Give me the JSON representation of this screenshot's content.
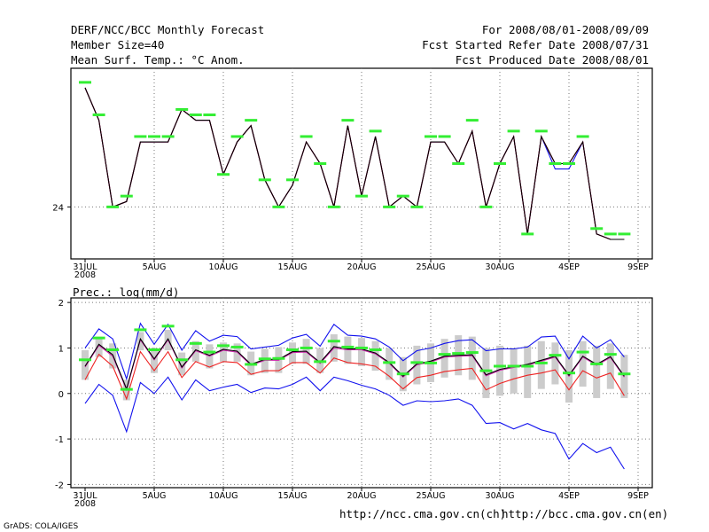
{
  "header": {
    "title": "DERF/NCC/BCC Monthly Forecast",
    "member_size": "Member Size=40",
    "variable": "Mean Surf. Temp.: °C Anom.",
    "period": "For 2008/08/01-2008/09/09",
    "start_date": "Fcst Started Refer Date 2008/07/31",
    "produced_date": "Fcst Produced Date 2008/08/01"
  },
  "footer": {
    "url_ch": "http://ncc.cma.gov.cn(ch)",
    "url_en": "http://bcc.cma.gov.cn(en)",
    "grads": "GrADS: COLA/IGES"
  },
  "colors": {
    "green": "#33ee33",
    "red": "#ee2222",
    "blue": "#1111ee",
    "magenta": "#cc22aa",
    "spread": "#cccccc",
    "black": "#000000"
  },
  "chart_data": [
    {
      "type": "line",
      "title": "Mean Surf. Temp.: °C Anom.",
      "x_ticks": [
        "31JUL",
        "5AUG",
        "10AUG",
        "15AUG",
        "20AUG",
        "25AUG",
        "30AUG",
        "4SEP",
        "9SEP"
      ],
      "x_year": "2008",
      "y_tick_labels": [
        "24"
      ],
      "y_tick_values": [
        24
      ],
      "ylim": [
        23.04,
        26.56
      ],
      "x": [
        1,
        2,
        3,
        4,
        5,
        6,
        7,
        8,
        9,
        10,
        11,
        12,
        13,
        14,
        15,
        16,
        17,
        18,
        19,
        20,
        21,
        22,
        23,
        24,
        25,
        26,
        27,
        28,
        29,
        30,
        31,
        32,
        33,
        34,
        35,
        36,
        37,
        38,
        39,
        40
      ],
      "series": [
        {
          "name": "green",
          "values": [
            26.3,
            25.7,
            24.0,
            24.2,
            25.3,
            25.3,
            25.3,
            25.8,
            25.7,
            25.7,
            24.6,
            25.3,
            25.6,
            24.5,
            24.0,
            24.5,
            25.3,
            24.8,
            24.0,
            25.6,
            24.2,
            25.4,
            24.0,
            24.2,
            24.0,
            25.3,
            25.3,
            24.8,
            25.6,
            24.0,
            24.8,
            25.4,
            23.5,
            25.4,
            24.8,
            24.8,
            25.3,
            23.6,
            23.5,
            23.5
          ]
        },
        {
          "name": "red",
          "values": [
            26.2,
            25.6,
            24.0,
            24.1,
            25.2,
            25.2,
            25.2,
            25.8,
            25.6,
            25.6,
            24.6,
            25.2,
            25.5,
            24.5,
            24.0,
            24.4,
            25.2,
            24.8,
            24.0,
            25.5,
            24.2,
            25.3,
            24.0,
            24.2,
            24.0,
            25.2,
            25.2,
            24.8,
            25.4,
            24.0,
            24.8,
            25.3,
            23.5,
            25.3,
            24.8,
            24.8,
            25.2,
            23.5,
            23.4,
            23.4
          ]
        },
        {
          "name": "magenta",
          "values": [
            26.2,
            25.6,
            24.0,
            24.1,
            25.2,
            25.2,
            25.2,
            25.8,
            25.6,
            25.6,
            24.6,
            25.2,
            25.5,
            24.5,
            24.0,
            24.4,
            25.2,
            24.8,
            24.0,
            25.5,
            24.2,
            25.3,
            24.0,
            24.2,
            24.0,
            25.2,
            25.2,
            24.8,
            25.4,
            24.0,
            24.8,
            25.3,
            23.5,
            25.3,
            24.8,
            24.8,
            25.2,
            23.5,
            23.4,
            23.4
          ]
        },
        {
          "name": "blue",
          "values": [
            26.2,
            25.6,
            24.0,
            24.1,
            25.2,
            25.2,
            25.2,
            25.8,
            25.6,
            25.6,
            24.6,
            25.2,
            25.5,
            24.5,
            24.0,
            24.4,
            25.2,
            24.8,
            24.0,
            25.5,
            24.2,
            25.3,
            24.0,
            24.2,
            24.0,
            25.2,
            25.2,
            24.8,
            25.4,
            24.0,
            24.8,
            25.3,
            23.5,
            25.3,
            24.7,
            24.7,
            25.2,
            23.5,
            23.4,
            23.4
          ]
        },
        {
          "name": "black",
          "values": [
            26.2,
            25.6,
            24.0,
            24.1,
            25.2,
            25.2,
            25.2,
            25.8,
            25.6,
            25.6,
            24.6,
            25.2,
            25.5,
            24.5,
            24.0,
            24.4,
            25.2,
            24.8,
            24.0,
            25.5,
            24.2,
            25.3,
            24.0,
            24.2,
            24.0,
            25.2,
            25.2,
            24.8,
            25.4,
            24.0,
            24.8,
            25.3,
            23.5,
            25.3,
            24.8,
            24.8,
            25.2,
            23.5,
            23.4,
            23.4
          ]
        }
      ]
    },
    {
      "type": "line",
      "title": "Prec.: log(mm/d)",
      "x_ticks": [
        "31JUL",
        "5AUG",
        "10AUG",
        "15AUG",
        "20AUG",
        "25AUG",
        "30AUG",
        "4SEP",
        "9SEP"
      ],
      "x_year": "2008",
      "y_tick_labels": [
        "-2",
        "-1",
        "0",
        "1",
        "2"
      ],
      "y_tick_values": [
        -2,
        -1,
        0,
        1,
        2
      ],
      "ylim": [
        -2.07,
        2.1
      ],
      "x": [
        1,
        2,
        3,
        4,
        5,
        6,
        7,
        8,
        9,
        10,
        11,
        12,
        13,
        14,
        15,
        16,
        17,
        18,
        19,
        20,
        21,
        22,
        23,
        24,
        25,
        26,
        27,
        28,
        29,
        30,
        31,
        32,
        33,
        34,
        35,
        36,
        37,
        38,
        39,
        40
      ],
      "series": [
        {
          "name": "green",
          "values": [
            0.74,
            1.22,
            0.96,
            0.09,
            1.4,
            0.96,
            1.48,
            0.74,
            1.1,
            0.91,
            1.05,
            1.02,
            0.64,
            0.76,
            0.77,
            0.96,
            1.0,
            0.7,
            1.15,
            1.02,
            1.0,
            0.96,
            0.68,
            0.43,
            0.68,
            0.67,
            0.86,
            0.88,
            0.9,
            0.5,
            0.6,
            0.6,
            0.6,
            0.67,
            0.84,
            0.45,
            0.91,
            0.65,
            0.86,
            0.43
          ]
        },
        {
          "name": "black",
          "values": [
            0.6,
            1.08,
            0.85,
            0.1,
            1.2,
            0.76,
            1.2,
            0.58,
            0.96,
            0.84,
            0.97,
            0.93,
            0.64,
            0.75,
            0.75,
            0.92,
            0.93,
            0.68,
            1.03,
            0.98,
            0.98,
            0.89,
            0.68,
            0.38,
            0.65,
            0.71,
            0.82,
            0.84,
            0.85,
            0.41,
            0.53,
            0.59,
            0.64,
            0.73,
            0.82,
            0.4,
            0.82,
            0.64,
            0.81,
            0.38
          ]
        },
        {
          "name": "magenta",
          "values": [
            0.58,
            1.06,
            0.82,
            0.08,
            1.18,
            0.74,
            1.18,
            0.56,
            0.94,
            0.82,
            0.95,
            0.91,
            0.62,
            0.73,
            0.73,
            0.9,
            0.91,
            0.66,
            1.0,
            0.96,
            0.96,
            0.87,
            0.66,
            0.36,
            0.63,
            0.69,
            0.8,
            0.82,
            0.83,
            0.39,
            0.51,
            0.57,
            0.62,
            0.71,
            0.8,
            0.38,
            0.8,
            0.62,
            0.79,
            0.36
          ]
        },
        {
          "name": "red",
          "values": [
            0.3,
            0.86,
            0.6,
            -0.12,
            0.92,
            0.5,
            0.92,
            0.35,
            0.7,
            0.58,
            0.7,
            0.68,
            0.42,
            0.5,
            0.5,
            0.68,
            0.68,
            0.45,
            0.78,
            0.68,
            0.65,
            0.6,
            0.38,
            0.1,
            0.35,
            0.4,
            0.48,
            0.52,
            0.55,
            0.08,
            0.22,
            0.32,
            0.4,
            0.45,
            0.52,
            0.08,
            0.5,
            0.34,
            0.45,
            -0.05
          ]
        },
        {
          "name": "blue_upper",
          "values": [
            1.0,
            1.42,
            1.2,
            0.32,
            1.54,
            1.08,
            1.52,
            0.95,
            1.38,
            1.15,
            1.28,
            1.25,
            0.98,
            1.02,
            1.06,
            1.22,
            1.3,
            1.04,
            1.52,
            1.28,
            1.26,
            1.2,
            1.02,
            0.72,
            0.94,
            1.0,
            1.1,
            1.16,
            1.18,
            0.94,
            0.98,
            0.98,
            1.02,
            1.24,
            1.26,
            0.76,
            1.26,
            1.0,
            1.18,
            0.8
          ]
        },
        {
          "name": "blue_lower",
          "values": [
            -0.22,
            0.2,
            -0.04,
            -0.84,
            0.24,
            0.0,
            0.36,
            -0.14,
            0.3,
            0.06,
            0.14,
            0.2,
            0.02,
            0.12,
            0.1,
            0.2,
            0.36,
            0.06,
            0.36,
            0.28,
            0.18,
            0.1,
            -0.04,
            -0.26,
            -0.16,
            -0.18,
            -0.16,
            -0.12,
            -0.26,
            -0.66,
            -0.64,
            -0.78,
            -0.66,
            -0.8,
            -0.88,
            -1.44,
            -1.1,
            -1.3,
            -1.18,
            -1.66
          ]
        },
        {
          "name": "spread_max",
          "values": [
            0.95,
            1.25,
            1.1,
            0.3,
            1.35,
            1.0,
            1.4,
            0.9,
            1.15,
            1.08,
            1.12,
            1.1,
            0.92,
            0.98,
            1.02,
            1.12,
            1.2,
            1.0,
            1.3,
            1.25,
            1.22,
            1.15,
            1.0,
            0.8,
            1.05,
            1.1,
            1.2,
            1.28,
            1.25,
            1.0,
            1.05,
            1.0,
            1.05,
            1.15,
            1.12,
            0.95,
            1.15,
            1.05,
            1.1,
            0.85
          ]
        },
        {
          "name": "spread_min",
          "values": [
            0.3,
            0.8,
            0.55,
            -0.15,
            0.95,
            0.45,
            0.95,
            0.4,
            0.7,
            0.55,
            0.7,
            0.7,
            0.4,
            0.45,
            0.45,
            0.65,
            0.65,
            0.45,
            0.7,
            0.65,
            0.6,
            0.5,
            0.3,
            0.05,
            0.2,
            0.25,
            0.35,
            0.4,
            0.3,
            -0.1,
            -0.05,
            0.0,
            -0.1,
            0.1,
            0.2,
            -0.2,
            0.15,
            -0.1,
            0.1,
            -0.1
          ]
        }
      ]
    }
  ]
}
